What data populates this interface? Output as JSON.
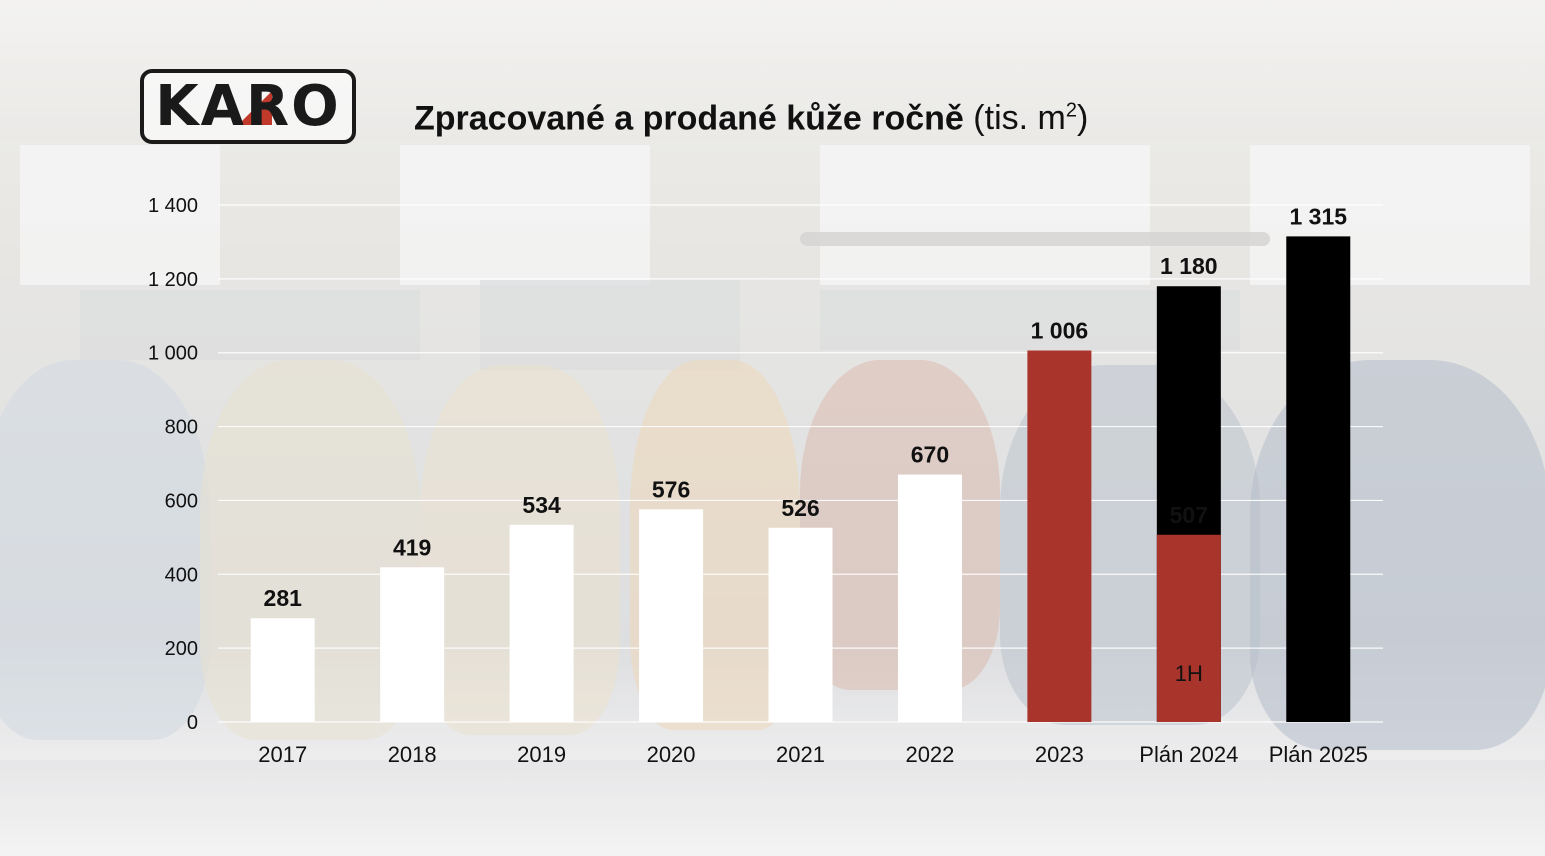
{
  "logo": {
    "text": "KARO"
  },
  "title": {
    "bold": "Zpracované a prodané kůže ročně",
    "unit_prefix": "(tis. m",
    "unit_sup": "2",
    "unit_suffix": ")"
  },
  "colors": {
    "past": "#ffffff",
    "actual": "#a8342b",
    "plan": "#000000",
    "grid": "#ffffff"
  },
  "chart_data": {
    "type": "bar",
    "title": "Zpracované a prodané kůže ročně (tis. m2)",
    "xlabel": "",
    "ylabel": "",
    "ylim": [
      0,
      1400
    ],
    "yticks": [
      0,
      200,
      400,
      600,
      800,
      1000,
      1200,
      1400
    ],
    "ytick_labels": [
      "0",
      "200",
      "400",
      "600",
      "800",
      "1 000",
      "1 200",
      "1 400"
    ],
    "grid": true,
    "legend": "none",
    "categories": [
      "2017",
      "2018",
      "2019",
      "2020",
      "2021",
      "2022",
      "2023",
      "Plán 2024",
      "Plán 2025"
    ],
    "values": [
      281,
      419,
      534,
      576,
      526,
      670,
      1006,
      1180,
      1315
    ],
    "value_labels": [
      "281",
      "419",
      "534",
      "576",
      "526",
      "670",
      "1 006",
      "1 180",
      "1 315"
    ],
    "bar_colors": [
      "past",
      "past",
      "past",
      "past",
      "past",
      "past",
      "actual",
      "plan",
      "plan"
    ],
    "segments": [
      {
        "category": "Plán 2024",
        "value": 507,
        "value_label": "507",
        "label": "1H",
        "color": "actual"
      }
    ]
  }
}
